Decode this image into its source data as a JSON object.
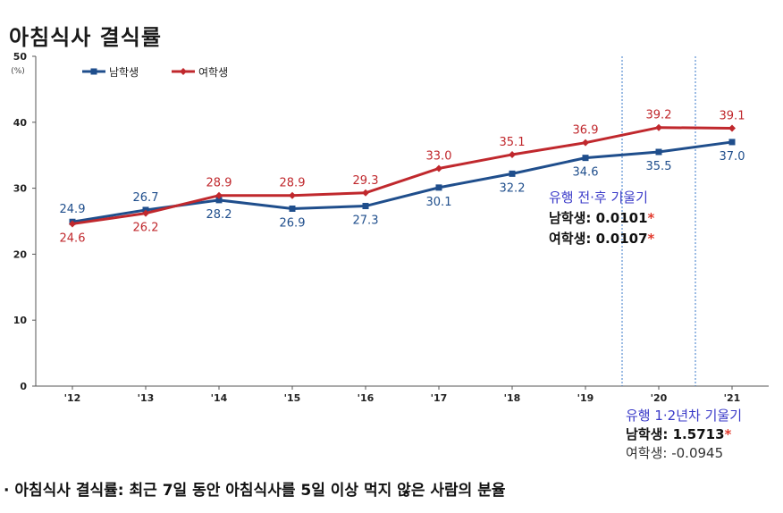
{
  "title": "아침식사 결식률",
  "footnote": "· 아침식사 결식률: 최근 7일 동안 아침식사를 5일 이상 먹지 않은 사람의 분율",
  "colors": {
    "male": "#1f4e8c",
    "female": "#c0282d",
    "divider": "#3a78c8",
    "annotation": "#3a3ac8",
    "star": "#e23b2e"
  },
  "chart_data": {
    "type": "line",
    "title": "아침식사 결식률",
    "y_unit": "(%)",
    "ylim": [
      0,
      50
    ],
    "y_ticks": [
      "0",
      "10",
      "20",
      "30",
      "40",
      "50"
    ],
    "categories": [
      "'12",
      "'13",
      "'14",
      "'15",
      "'16",
      "'17",
      "'18",
      "'19",
      "'20",
      "'21"
    ],
    "series": [
      {
        "name": "남학생",
        "marker": "square",
        "values": [
          24.9,
          26.7,
          28.2,
          26.9,
          27.3,
          30.1,
          32.2,
          34.6,
          35.5,
          37.0
        ],
        "labels": [
          "24.9",
          "26.7",
          "28.2",
          "26.9",
          "27.3",
          "30.1",
          "32.2",
          "34.6",
          "35.5",
          "37.0"
        ]
      },
      {
        "name": "여학생",
        "marker": "diamond",
        "values": [
          24.6,
          26.2,
          28.9,
          28.9,
          29.3,
          33.0,
          35.1,
          36.9,
          39.2,
          39.1
        ],
        "labels": [
          "24.6",
          "26.2",
          "28.9",
          "28.9",
          "29.3",
          "33.0",
          "35.1",
          "36.9",
          "39.2",
          "39.1"
        ]
      }
    ],
    "legend": "top-left",
    "grid": false
  },
  "annotations": {
    "pre_post": {
      "title": "유행 전·후 기울기",
      "male": "남학생: 0.0101",
      "female": "여학생: 0.0107",
      "male_star": "*",
      "female_star": "*"
    },
    "year_1_2": {
      "title": "유행 1·2년차 기울기",
      "male": "남학생: 1.5713",
      "male_star": "*",
      "female": "여학생: -0.0945"
    }
  }
}
